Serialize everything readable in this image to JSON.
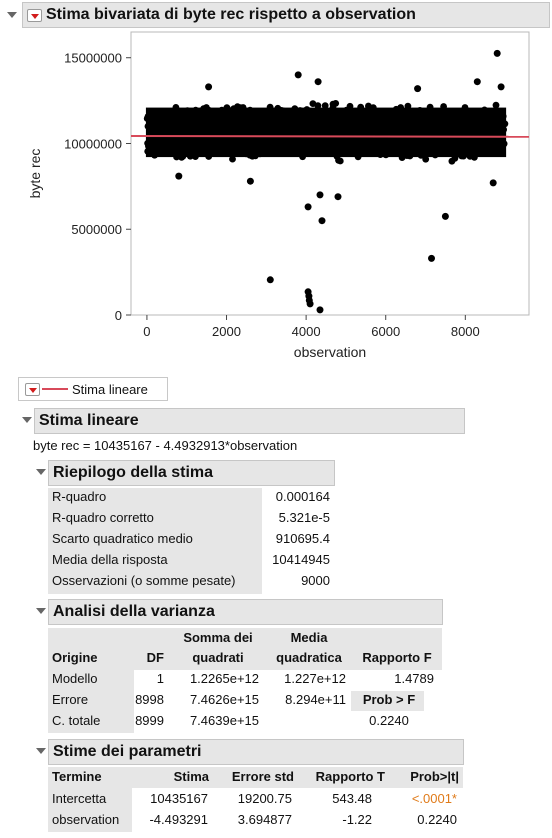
{
  "report": {
    "title": "Stima bivariata di byte rec rispetto a observation",
    "legend_label": "Stima lineare"
  },
  "chart_data": {
    "type": "scatter",
    "xlabel": "observation",
    "ylabel": "byte rec",
    "xlim": [
      -400,
      9600
    ],
    "ylim": [
      0,
      16500000
    ],
    "x_ticks": [
      "0",
      "2000",
      "4000",
      "6000",
      "8000"
    ],
    "y_ticks": [
      "0",
      "5000000",
      "10000000",
      "15000000"
    ],
    "band": {
      "x_start": 0,
      "x_end": 9000,
      "y_low": 8800000,
      "y_high": 12500000
    },
    "outliers": [
      {
        "x": 3100,
        "y": 2050000
      },
      {
        "x": 4050,
        "y": 1350000
      },
      {
        "x": 4070,
        "y": 1100000
      },
      {
        "x": 4080,
        "y": 850000
      },
      {
        "x": 4100,
        "y": 650000
      },
      {
        "x": 4350,
        "y": 300000
      },
      {
        "x": 4050,
        "y": 6300000
      },
      {
        "x": 4350,
        "y": 7000000
      },
      {
        "x": 4400,
        "y": 5500000
      },
      {
        "x": 4800,
        "y": 6900000
      },
      {
        "x": 7150,
        "y": 3300000
      },
      {
        "x": 7500,
        "y": 5750000
      },
      {
        "x": 8800,
        "y": 15250000
      },
      {
        "x": 3800,
        "y": 14000000
      },
      {
        "x": 4300,
        "y": 13600000
      },
      {
        "x": 8300,
        "y": 13600000
      },
      {
        "x": 1550,
        "y": 13300000
      },
      {
        "x": 6800,
        "y": 13200000
      },
      {
        "x": 8700,
        "y": 7700000
      },
      {
        "x": 2600,
        "y": 7800000
      },
      {
        "x": 800,
        "y": 8100000
      },
      {
        "x": 8900,
        "y": 13300000
      }
    ],
    "fit_line": {
      "intercept": 10435167,
      "slope": -4.4932913,
      "color": "#d84a5a"
    }
  },
  "stima_lineare": {
    "header": "Stima lineare",
    "equation": "byte rec = 10435167 - 4.4932913*observation"
  },
  "riepilogo": {
    "header": "Riepilogo della stima",
    "rows": [
      {
        "label": "R-quadro",
        "value": "0.000164"
      },
      {
        "label": "R-quadro corretto",
        "value": "5.321e-5"
      },
      {
        "label": "Scarto quadratico medio",
        "value": "910695.4"
      },
      {
        "label": "Media della risposta",
        "value": "10414945"
      },
      {
        "label": "Osservazioni (o somme pesate)",
        "value": "9000"
      }
    ]
  },
  "anova": {
    "header": "Analisi della varianza",
    "col_origine": "Origine",
    "col_df": "DF",
    "col_ss_1": "Somma dei",
    "col_ss_2": "quadrati",
    "col_ms_1": "Media",
    "col_ms_2": "quadratica",
    "col_f": "Rapporto F",
    "rows": [
      {
        "origine": "Modello",
        "df": "1",
        "ss": "1.2265e+12",
        "ms": "1.227e+12",
        "f": "1.4789"
      },
      {
        "origine": "Errore",
        "df": "8998",
        "ss": "7.4626e+15",
        "ms": "8.294e+11",
        "f": "Prob > F"
      },
      {
        "origine": "C. totale",
        "df": "8999",
        "ss": "7.4639e+15",
        "ms": "",
        "f": "0.2240"
      }
    ]
  },
  "params": {
    "header": "Stime dei parametri",
    "col_termine": "Termine",
    "col_stima": "Stima",
    "col_errore": "Errore std",
    "col_t": "Rapporto T",
    "col_p": "Prob>|t|",
    "rows": [
      {
        "termine": "Intercetta",
        "stima": "10435167",
        "errore": "19200.75",
        "t": "543.48",
        "p": "<.0001*"
      },
      {
        "termine": "observation",
        "stima": "-4.493291",
        "errore": "3.694877",
        "t": "-1.22",
        "p": "0.2240"
      }
    ],
    "sig_color": "#e07b1a"
  }
}
